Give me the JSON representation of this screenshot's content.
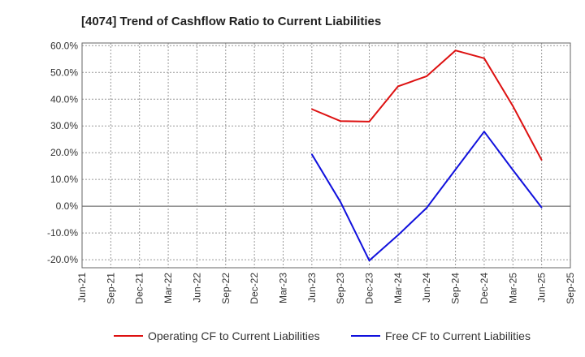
{
  "chart_data": {
    "type": "line",
    "title": "[4074]  Trend of Cashflow Ratio to Current Liabilities",
    "xlabel": "",
    "ylabel": "",
    "x_ticks": [
      "Jun-21",
      "Sep-21",
      "Dec-21",
      "Mar-22",
      "Jun-22",
      "Sep-22",
      "Dec-22",
      "Mar-23",
      "Jun-23",
      "Sep-23",
      "Dec-23",
      "Mar-24",
      "Jun-24",
      "Sep-24",
      "Dec-24",
      "Mar-25",
      "Jun-25",
      "Sep-25"
    ],
    "y_ticks": [
      "60.0%",
      "50.0%",
      "40.0%",
      "30.0%",
      "20.0%",
      "10.0%",
      "0.0%",
      "-10.0%",
      "-20.0%"
    ],
    "ylim": [
      -23,
      61
    ],
    "grid": true,
    "legend_position": "bottom",
    "series": [
      {
        "name": "Operating CF to Current Liabilities",
        "color": "#dd1111",
        "x": [
          "Jun-23",
          "Sep-23",
          "Dec-23",
          "Mar-24",
          "Jun-24",
          "Sep-24",
          "Dec-24",
          "Mar-25",
          "Jun-25"
        ],
        "values": [
          36.3,
          31.8,
          31.6,
          44.8,
          48.6,
          58.2,
          55.3,
          37.4,
          17.3
        ]
      },
      {
        "name": "Free CF to Current Liabilities",
        "color": "#1111dd",
        "x": [
          "Jun-23",
          "Sep-23",
          "Dec-23",
          "Mar-24",
          "Jun-24",
          "Sep-24",
          "Dec-24",
          "Mar-25",
          "Jun-25"
        ],
        "values": [
          19.4,
          1.5,
          -20.3,
          -10.8,
          -0.6,
          13.7,
          27.9,
          13.5,
          -0.5
        ]
      }
    ]
  }
}
